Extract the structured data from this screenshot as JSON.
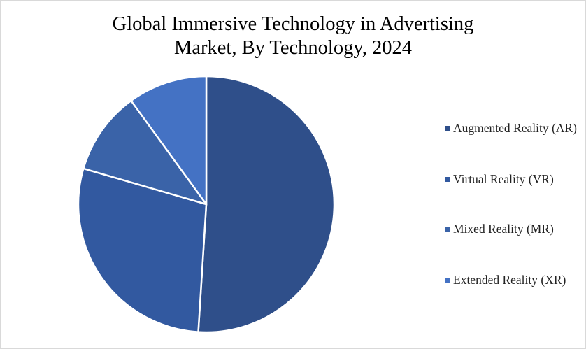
{
  "chart_data": {
    "type": "pie",
    "title": "Global Immersive Technology in Advertising Market, By Technology, 2024",
    "title_lines": [
      "Global Immersive Technology in Advertising",
      "Market, By Technology, 2024"
    ],
    "categories": [
      "Augmented Reality (AR)",
      "Virtual Reality (VR)",
      "Mixed Reality (MR)",
      "Extended Reality (XR)"
    ],
    "values": [
      51,
      28.5,
      10.5,
      10
    ],
    "unit": "percent share (estimated)",
    "colors": [
      "#2f4f8a",
      "#3259a0",
      "#3a63a8",
      "#4472c4"
    ],
    "legend_position": "right",
    "start_angle": "12 o'clock",
    "direction": "clockwise"
  }
}
